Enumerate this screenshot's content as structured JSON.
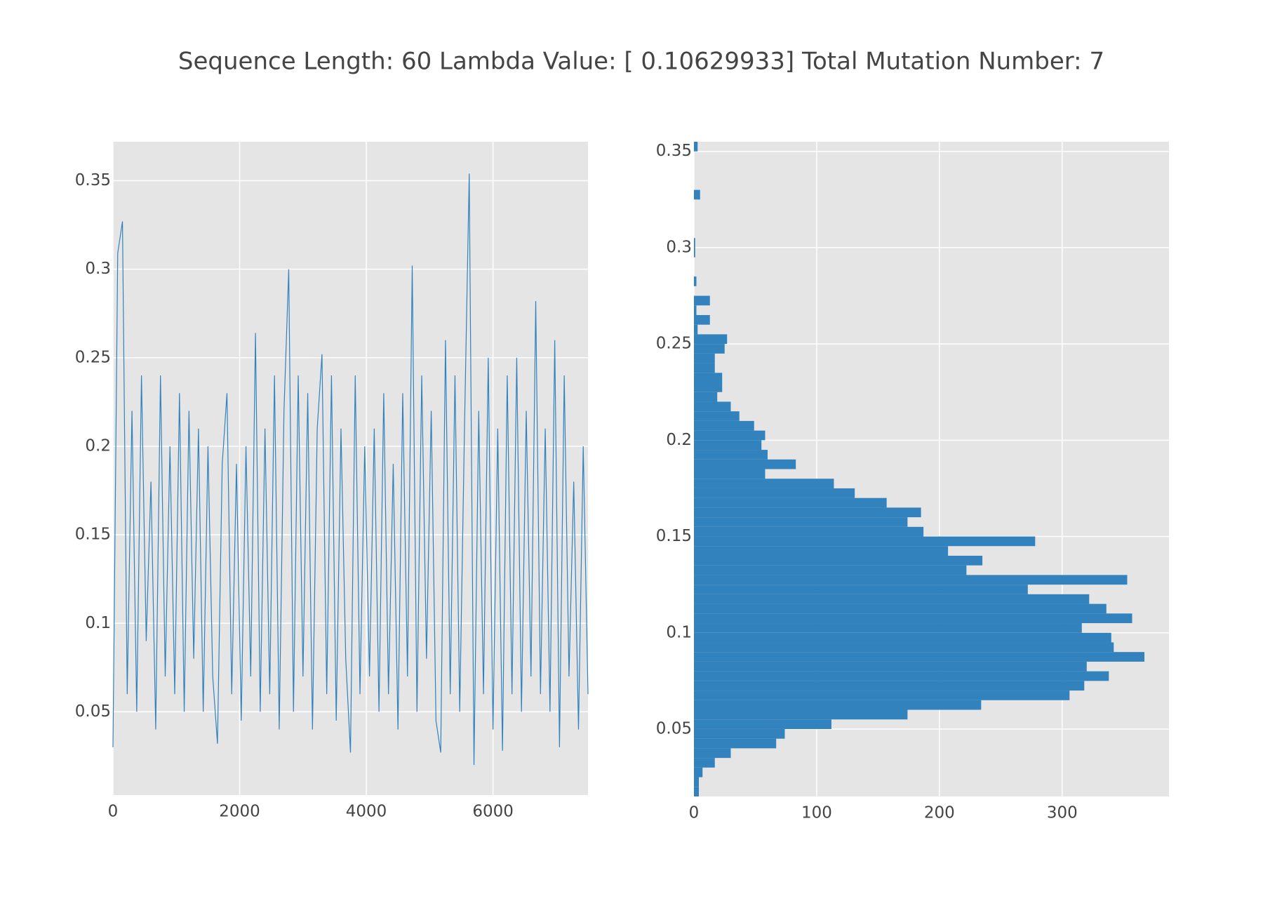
{
  "title": "Sequence Length: 60 Lambda Value:  [ 0.10629933] Total Mutation Number: 7",
  "chart_data": [
    {
      "type": "line",
      "color": "#3182bd",
      "grid": true,
      "x": [
        0,
        75,
        150,
        225,
        300,
        375,
        450,
        525,
        600,
        675,
        750,
        825,
        900,
        975,
        1050,
        1125,
        1200,
        1275,
        1350,
        1425,
        1500,
        1575,
        1650,
        1725,
        1800,
        1875,
        1950,
        2025,
        2100,
        2175,
        2250,
        2325,
        2400,
        2475,
        2550,
        2625,
        2700,
        2775,
        2850,
        2925,
        3000,
        3075,
        3150,
        3225,
        3300,
        3375,
        3450,
        3525,
        3600,
        3675,
        3750,
        3825,
        3900,
        3975,
        4050,
        4125,
        4200,
        4275,
        4350,
        4425,
        4500,
        4575,
        4650,
        4725,
        4800,
        4875,
        4950,
        5025,
        5100,
        5175,
        5250,
        5325,
        5400,
        5475,
        5550,
        5625,
        5700,
        5775,
        5850,
        5925,
        6000,
        6075,
        6150,
        6225,
        6300,
        6375,
        6450,
        6525,
        6600,
        6675,
        6750,
        6825,
        6900,
        6975,
        7050,
        7125,
        7200,
        7275,
        7350,
        7425,
        7500
      ],
      "values": [
        0.03,
        0.309,
        0.327,
        0.06,
        0.22,
        0.05,
        0.24,
        0.09,
        0.18,
        0.04,
        0.24,
        0.07,
        0.2,
        0.06,
        0.23,
        0.05,
        0.22,
        0.08,
        0.21,
        0.05,
        0.2,
        0.07,
        0.032,
        0.19,
        0.23,
        0.06,
        0.19,
        0.045,
        0.2,
        0.07,
        0.264,
        0.05,
        0.21,
        0.06,
        0.24,
        0.04,
        0.22,
        0.3,
        0.05,
        0.24,
        0.07,
        0.23,
        0.04,
        0.21,
        0.252,
        0.06,
        0.24,
        0.045,
        0.21,
        0.08,
        0.027,
        0.24,
        0.06,
        0.2,
        0.07,
        0.21,
        0.05,
        0.23,
        0.06,
        0.19,
        0.04,
        0.23,
        0.07,
        0.302,
        0.05,
        0.24,
        0.08,
        0.22,
        0.045,
        0.027,
        0.26,
        0.06,
        0.24,
        0.05,
        0.21,
        0.354,
        0.02,
        0.22,
        0.06,
        0.25,
        0.04,
        0.21,
        0.028,
        0.24,
        0.06,
        0.25,
        0.05,
        0.22,
        0.07,
        0.282,
        0.06,
        0.21,
        0.05,
        0.26,
        0.03,
        0.24,
        0.07,
        0.18,
        0.04,
        0.2,
        0.06
      ],
      "xlim": [
        0,
        7500
      ],
      "ylim": [
        0.003,
        0.372
      ],
      "xticks": [
        0,
        2000,
        4000,
        6000
      ],
      "yticks": [
        0.05,
        0.1,
        0.15,
        0.2,
        0.25,
        0.3,
        0.35
      ]
    },
    {
      "type": "histogram",
      "orientation": "horizontal",
      "color": "#3182bd",
      "grid": true,
      "bins": [
        0.015,
        0.02,
        0.025,
        0.03,
        0.035,
        0.04,
        0.045,
        0.05,
        0.055,
        0.06,
        0.065,
        0.07,
        0.075,
        0.08,
        0.085,
        0.09,
        0.095,
        0.1,
        0.105,
        0.11,
        0.115,
        0.12,
        0.125,
        0.13,
        0.135,
        0.14,
        0.145,
        0.15,
        0.155,
        0.16,
        0.165,
        0.17,
        0.175,
        0.18,
        0.185,
        0.19,
        0.195,
        0.2,
        0.205,
        0.21,
        0.215,
        0.22,
        0.225,
        0.23,
        0.235,
        0.24,
        0.245,
        0.25,
        0.255,
        0.26,
        0.265,
        0.27,
        0.275,
        0.28,
        0.285,
        0.29,
        0.295,
        0.3,
        0.305,
        0.31,
        0.315,
        0.32,
        0.325,
        0.33,
        0.335,
        0.34,
        0.345,
        0.35,
        0.355
      ],
      "counts": [
        4,
        4,
        7,
        17,
        30,
        67,
        74,
        112,
        174,
        234,
        306,
        318,
        338,
        320,
        367,
        342,
        340,
        316,
        357,
        336,
        322,
        272,
        353,
        222,
        235,
        207,
        278,
        187,
        174,
        185,
        157,
        131,
        114,
        58,
        83,
        60,
        55,
        58,
        49,
        37,
        30,
        19,
        23,
        23,
        17,
        17,
        25,
        27,
        3,
        13,
        2,
        13,
        0,
        2,
        0,
        0,
        1,
        1,
        0,
        0,
        0,
        0,
        5,
        0,
        0,
        0,
        0,
        3
      ],
      "xlim": [
        0,
        387
      ],
      "ylim": [
        0.015,
        0.355
      ],
      "xticks": [
        0,
        100,
        200,
        300
      ],
      "yticks": [
        0.05,
        0.1,
        0.15,
        0.2,
        0.25,
        0.3,
        0.35
      ]
    }
  ]
}
